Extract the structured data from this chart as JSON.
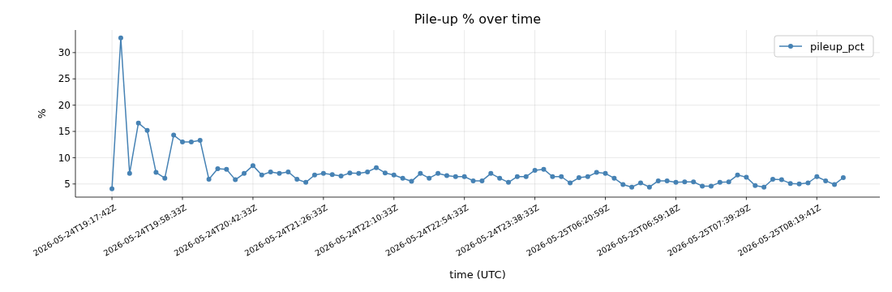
{
  "chart_data": {
    "type": "line",
    "title": "Pile-up % over time",
    "xlabel": "time (UTC)",
    "ylabel": "%",
    "categories": [
      "2026-05-24T19:17:42Z",
      null,
      null,
      null,
      null,
      null,
      null,
      null,
      "2026-05-24T19:58:33Z",
      null,
      null,
      null,
      null,
      null,
      null,
      null,
      "2026-05-24T20:42:33Z",
      null,
      null,
      null,
      null,
      null,
      null,
      null,
      "2026-05-24T21:26:33Z",
      null,
      null,
      null,
      null,
      null,
      null,
      null,
      "2026-05-24T22:10:33Z",
      null,
      null,
      null,
      null,
      null,
      null,
      null,
      "2026-05-24T22:54:33Z",
      null,
      null,
      null,
      null,
      null,
      null,
      null,
      "2026-05-24T23:38:33Z",
      null,
      null,
      null,
      null,
      null,
      null,
      null,
      "2026-05-25T06:20:59Z",
      null,
      null,
      null,
      null,
      null,
      null,
      null,
      "2026-05-25T06:59:18Z",
      null,
      null,
      null,
      null,
      null,
      null,
      null,
      "2026-05-25T07:39:29Z",
      null,
      null,
      null,
      null,
      null,
      null,
      null,
      "2026-05-25T08:19:41Z",
      null,
      null,
      null
    ],
    "series": [
      {
        "name": "pileup_pct",
        "color": "#4682b4",
        "values": [
          4.1,
          32.8,
          7.0,
          16.6,
          15.2,
          7.2,
          6.1,
          14.3,
          13.0,
          13.0,
          13.3,
          5.9,
          7.9,
          7.8,
          5.8,
          7.0,
          8.5,
          6.7,
          7.3,
          7.0,
          7.3,
          5.9,
          5.3,
          6.7,
          7.0,
          6.8,
          6.5,
          7.1,
          7.0,
          7.3,
          8.1,
          7.1,
          6.7,
          6.1,
          5.5,
          7.0,
          6.1,
          7.0,
          6.6,
          6.4,
          6.4,
          5.6,
          5.6,
          7.0,
          6.1,
          5.3,
          6.4,
          6.4,
          7.6,
          7.8,
          6.4,
          6.4,
          5.2,
          6.2,
          6.4,
          7.2,
          7.0,
          6.1,
          4.9,
          4.4,
          5.2,
          4.4,
          5.6,
          5.6,
          5.3,
          5.4,
          5.4,
          4.6,
          4.6,
          5.3,
          5.4,
          6.7,
          6.3,
          4.7,
          4.4,
          5.9,
          5.8,
          5.1,
          5.0,
          5.2,
          6.4,
          5.6,
          4.9,
          6.2
        ]
      }
    ],
    "ylim": [
      2.5,
      34.3
    ],
    "yticks": [
      5,
      10,
      15,
      20,
      25,
      30
    ],
    "grid": true,
    "legend": "top right",
    "marker": "circle",
    "line_style": "solid"
  }
}
